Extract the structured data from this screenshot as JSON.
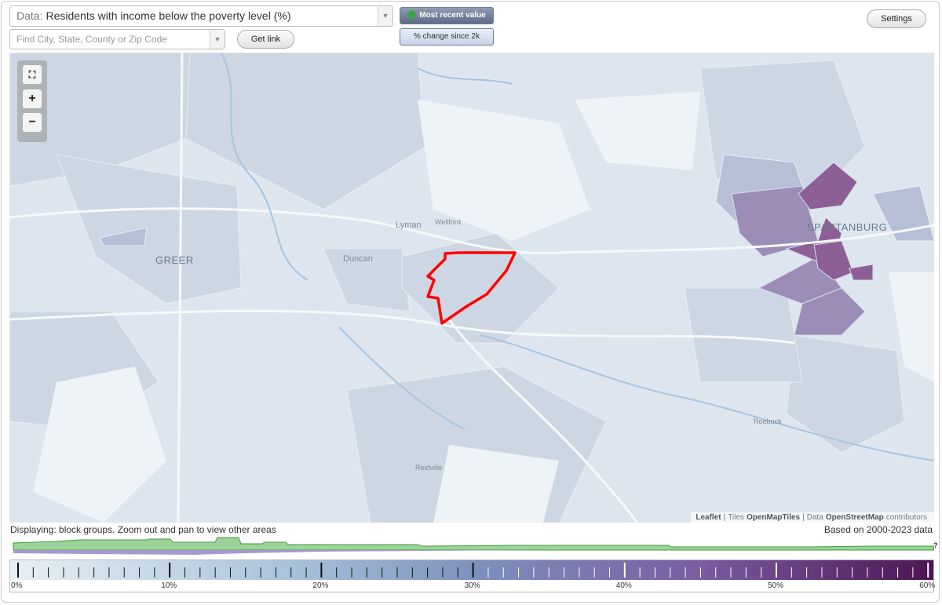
{
  "header": {
    "data_prefix": "Data:",
    "data_label": "Residents with income below the poverty level (%)",
    "search_placeholder": "Find City, State, County or Zip Code",
    "get_link": "Get link",
    "most_recent": "Most recent value",
    "change_since": "% change since 2k",
    "settings": "Settings"
  },
  "map": {
    "zoom_in": "+",
    "zoom_out": "−",
    "labels": [
      "GREER",
      "Lyman",
      "Wellford",
      "Duncan",
      "SPARTANBURG",
      "Roebuck",
      "Reidville"
    ],
    "attribution": [
      "Leaflet",
      "|",
      "Tiles",
      "OpenMapTiles",
      "|",
      "Data",
      "OpenStreetMap",
      "contributors"
    ]
  },
  "footer": {
    "status": "Displaying: block groups. Zoom out and pan to view other areas",
    "based_on": "Based on 2000-2023 data",
    "help": "?"
  },
  "legend": {
    "labels": [
      "0%",
      "10%",
      "20%",
      "30%",
      "40%",
      "50%",
      "60%"
    ]
  }
}
